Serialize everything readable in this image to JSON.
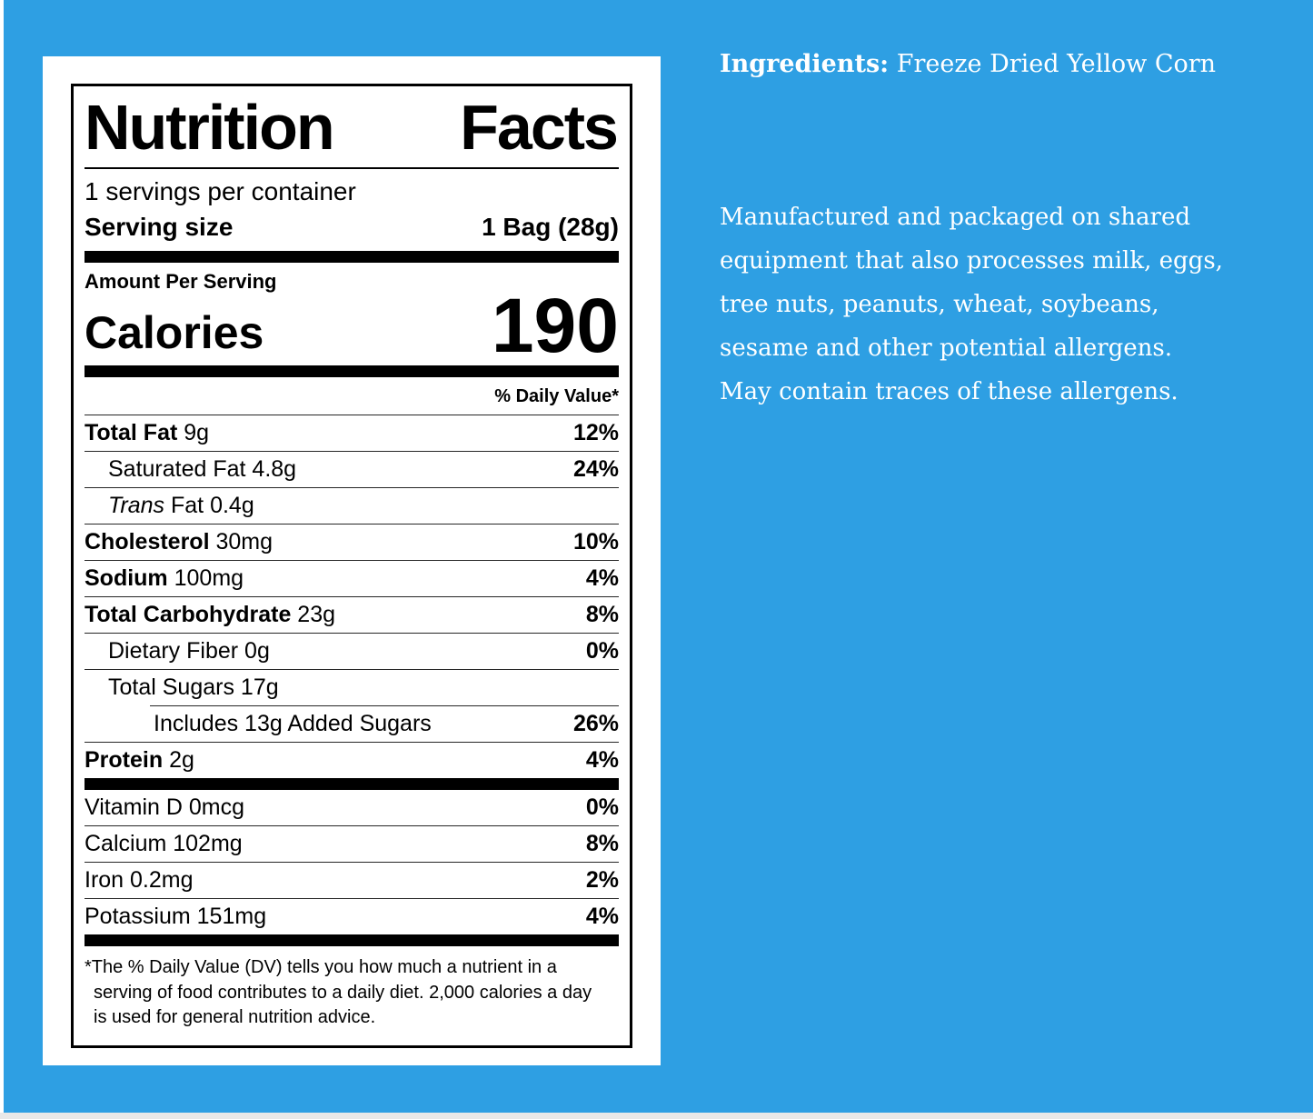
{
  "colors": {
    "background_blue": "#2E9FE3",
    "bottom_strip": "#E8E8E8",
    "label_text": "#000000",
    "panel_text": "#FFFFFF"
  },
  "label": {
    "title_left": "Nutrition",
    "title_right": "Facts",
    "servings_per_container": "1 servings per container",
    "serving_size_label": "Serving size",
    "serving_size_value": "1 Bag (28g)",
    "amount_per_serving": "Amount Per Serving",
    "calories_label": "Calories",
    "calories_value": "190",
    "daily_value_header": "% Daily Value*",
    "rows": [
      {
        "bold": "Total Fat",
        "text": "9g",
        "dv": "12%",
        "indent": 0
      },
      {
        "text": "Saturated Fat 4.8g",
        "dv": "24%",
        "indent": 1
      },
      {
        "italic": "Trans",
        "text": "Fat 0.4g",
        "dv": "",
        "indent": 1
      },
      {
        "bold": "Cholesterol",
        "text": "30mg",
        "dv": "10%",
        "indent": 0
      },
      {
        "bold": "Sodium",
        "text": "100mg",
        "dv": "4%",
        "indent": 0
      },
      {
        "bold": "Total Carbohydrate",
        "text": "23g",
        "dv": "8%",
        "indent": 0
      },
      {
        "text": "Dietary Fiber 0g",
        "dv": "0%",
        "indent": 1
      },
      {
        "text": "Total Sugars 17g",
        "dv": "",
        "indent": 1
      },
      {
        "text": "Includes 13g Added Sugars",
        "dv": "26%",
        "indent": 2,
        "divider_indent": 72
      },
      {
        "bold": "Protein",
        "text": "2g",
        "dv": "4%",
        "indent": 0
      }
    ],
    "vitamins": [
      {
        "text": "Vitamin D 0mcg",
        "dv": "0%"
      },
      {
        "text": "Calcium 102mg",
        "dv": "8%"
      },
      {
        "text": "Iron 0.2mg",
        "dv": "2%"
      },
      {
        "text": "Potassium 151mg",
        "dv": "4%"
      }
    ],
    "footnote": "*The % Daily Value (DV) tells you how much a nutrient in a serving of food contributes to a daily diet. 2,000 calories a day is used for general nutrition advice."
  },
  "right_panel": {
    "ingredients_label": "Ingredients:",
    "ingredients_value": "Freeze Dried Yellow Corn",
    "allergen_text": "Manufactured and packaged on shared equipment that also processes milk, eggs, tree nuts, peanuts, wheat, soybeans, sesame and other potential allergens. May contain traces of these allergens."
  }
}
